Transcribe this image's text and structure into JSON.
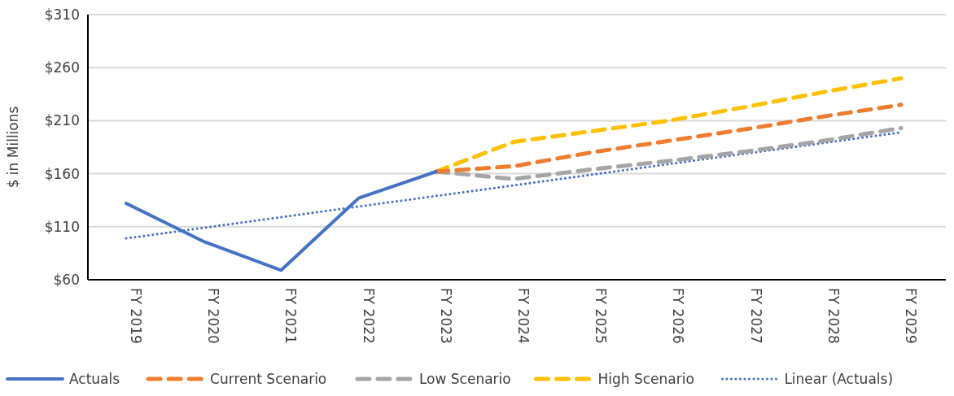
{
  "chart_data": {
    "type": "line",
    "ylabel": "$ in Millions",
    "categories": [
      "FY 2019",
      "FY 2020",
      "FY 2021",
      "FY 2022",
      "FY 2023",
      "FY 2024",
      "FY 2025",
      "FY 2026",
      "FY 2027",
      "FY 2028",
      "FY 2029"
    ],
    "ylim": [
      60,
      310
    ],
    "yticks": [
      {
        "value": 60,
        "label": "$60"
      },
      {
        "value": 110,
        "label": "$110"
      },
      {
        "value": 160,
        "label": "$160"
      },
      {
        "value": 210,
        "label": "$210"
      },
      {
        "value": 260,
        "label": "$260"
      },
      {
        "value": 310,
        "label": "$310"
      }
    ],
    "grid": "y",
    "legend": "bottom",
    "series": [
      {
        "name": "Actuals",
        "color": "#4472c4",
        "line_style": "solid",
        "values": [
          132,
          96,
          69,
          137,
          162,
          null,
          null,
          null,
          null,
          null,
          null
        ]
      },
      {
        "name": "Current Scenario",
        "color": "#ed7d31",
        "line_style": "dashed",
        "values": [
          null,
          null,
          null,
          null,
          162,
          167,
          180,
          191,
          202,
          214,
          225
        ]
      },
      {
        "name": "Low Scenario",
        "color": "#a5a5a5",
        "line_style": "dashed",
        "values": [
          null,
          null,
          null,
          null,
          162,
          155,
          164,
          172,
          181,
          191,
          203
        ]
      },
      {
        "name": "High Scenario",
        "color": "#ffc000",
        "line_style": "dashed",
        "values": [
          null,
          null,
          null,
          null,
          162,
          190,
          200,
          210,
          223,
          237,
          250
        ]
      },
      {
        "name": "Linear (Actuals)",
        "color": "#4472c4",
        "line_style": "dotted",
        "values": [
          99,
          109,
          119,
          129,
          139,
          149,
          159,
          169,
          179,
          189,
          199
        ]
      }
    ]
  }
}
